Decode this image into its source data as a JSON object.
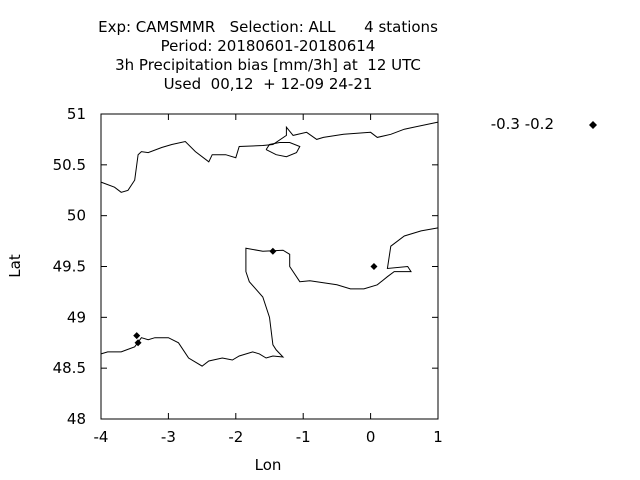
{
  "chart_data": {
    "type": "scatter",
    "title_lines": [
      "Exp: CAMSMMR   Selection: ALL      4 stations",
      "Period: 20180601-20180614",
      "3h Precipitation bias [mm/3h] at  12 UTC",
      "Used  00,12  + 12-09 24-21"
    ],
    "xlabel": "Lon",
    "ylabel": "Lat",
    "xlim": [
      -4,
      1
    ],
    "ylim": [
      48,
      51
    ],
    "x_ticks": [
      -4,
      -3,
      -2,
      -1,
      0,
      1
    ],
    "x_tick_labels": [
      "-4",
      "-3",
      "-2",
      "-1",
      "0",
      "1"
    ],
    "y_ticks": [
      48,
      48.5,
      49,
      49.5,
      50,
      50.5,
      51
    ],
    "y_tick_labels": [
      "48",
      "48.5",
      "49",
      "49.5",
      "50",
      "50.5",
      "51"
    ],
    "grid": false,
    "legend_position": "right",
    "series": [
      {
        "name": "-0.3 -0.2",
        "marker": "diamond",
        "color": "#000000",
        "points": [
          {
            "x": -3.47,
            "y": 48.82
          },
          {
            "x": -3.45,
            "y": 48.75
          },
          {
            "x": -1.45,
            "y": 49.65
          },
          {
            "x": 0.05,
            "y": 49.5
          }
        ]
      }
    ],
    "coastlines": [
      [
        [
          -4.0,
          50.33
        ],
        [
          -3.8,
          50.28
        ],
        [
          -3.7,
          50.23
        ],
        [
          -3.6,
          50.25
        ],
        [
          -3.5,
          50.35
        ],
        [
          -3.45,
          50.6
        ],
        [
          -3.4,
          50.63
        ],
        [
          -3.3,
          50.62
        ],
        [
          -3.1,
          50.67
        ],
        [
          -2.95,
          50.7
        ],
        [
          -2.75,
          50.73
        ],
        [
          -2.6,
          50.63
        ],
        [
          -2.4,
          50.53
        ],
        [
          -2.35,
          50.6
        ],
        [
          -2.15,
          50.6
        ],
        [
          -2.0,
          50.57
        ],
        [
          -1.95,
          50.68
        ],
        [
          -1.6,
          50.69
        ],
        [
          -1.45,
          50.7
        ],
        [
          -1.25,
          50.79
        ],
        [
          -1.25,
          50.87
        ],
        [
          -1.15,
          50.79
        ],
        [
          -0.95,
          50.82
        ],
        [
          -0.8,
          50.75
        ],
        [
          -0.7,
          50.77
        ],
        [
          -0.4,
          50.8
        ],
        [
          0.0,
          50.82
        ],
        [
          0.1,
          50.77
        ],
        [
          0.3,
          50.8
        ],
        [
          0.5,
          50.85
        ],
        [
          1.0,
          50.92
        ]
      ],
      [
        [
          -1.55,
          50.65
        ],
        [
          -1.4,
          50.6
        ],
        [
          -1.25,
          50.58
        ],
        [
          -1.1,
          50.62
        ],
        [
          -1.05,
          50.68
        ],
        [
          -1.2,
          50.72
        ],
        [
          -1.35,
          50.72
        ],
        [
          -1.5,
          50.7
        ],
        [
          -1.55,
          50.65
        ]
      ],
      [
        [
          -4.0,
          48.64
        ],
        [
          -3.9,
          48.66
        ],
        [
          -3.7,
          48.66
        ],
        [
          -3.5,
          48.71
        ],
        [
          -3.4,
          48.8
        ],
        [
          -3.3,
          48.78
        ],
        [
          -3.2,
          48.8
        ],
        [
          -3.0,
          48.8
        ],
        [
          -2.85,
          48.75
        ],
        [
          -2.7,
          48.6
        ],
        [
          -2.5,
          48.52
        ],
        [
          -2.4,
          48.57
        ],
        [
          -2.2,
          48.6
        ],
        [
          -2.05,
          48.58
        ],
        [
          -1.95,
          48.62
        ],
        [
          -1.75,
          48.66
        ],
        [
          -1.65,
          48.64
        ],
        [
          -1.55,
          48.6
        ],
        [
          -1.45,
          48.62
        ],
        [
          -1.3,
          48.61
        ],
        [
          -1.4,
          48.68
        ],
        [
          -1.45,
          48.73
        ],
        [
          -1.5,
          49.0
        ],
        [
          -1.6,
          49.2
        ],
        [
          -1.8,
          49.35
        ],
        [
          -1.85,
          49.45
        ],
        [
          -1.85,
          49.68
        ],
        [
          -1.6,
          49.65
        ],
        [
          -1.3,
          49.66
        ],
        [
          -1.2,
          49.62
        ],
        [
          -1.2,
          49.5
        ],
        [
          -1.05,
          49.35
        ],
        [
          -0.9,
          49.36
        ],
        [
          -0.5,
          49.32
        ],
        [
          -0.3,
          49.28
        ],
        [
          -0.1,
          49.28
        ],
        [
          0.1,
          49.32
        ],
        [
          0.25,
          49.4
        ],
        [
          0.35,
          49.45
        ],
        [
          0.6,
          49.45
        ],
        [
          0.55,
          49.5
        ],
        [
          0.25,
          49.48
        ],
        [
          0.3,
          49.7
        ],
        [
          0.5,
          49.8
        ],
        [
          0.75,
          49.85
        ],
        [
          1.0,
          49.88
        ]
      ]
    ]
  }
}
